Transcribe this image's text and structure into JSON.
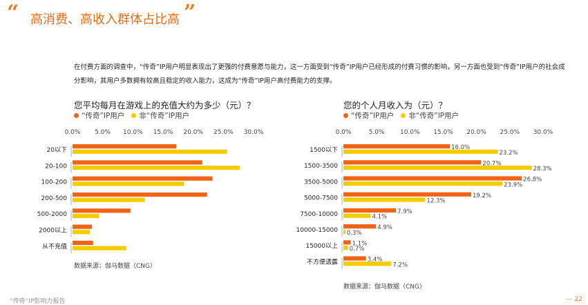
{
  "header": {
    "open_quote": "“",
    "close_quote": "”",
    "title": "高消费、高收入群体占比高"
  },
  "intro_text": "在付费方面的调查中，“传奇”IP用户明显表现出了更强的付费意愿与能力，这一方面受到“传奇”IP用户已经形成的付费习惯的影响，另一方面也受到“传奇”IP用户的社会成分影响，其用户多数拥有较高且稳定的收入能力，这成为“传奇”IP用户高付费能力的支撑。",
  "colors": {
    "legend": "#f06418",
    "non_legend": "#f5cc00",
    "accent": "#f07a1c"
  },
  "left_chart": {
    "question": "您平均每月在游戏上的充值大约为多少（元）？",
    "legend_a": "“传奇”IP用户",
    "legend_b": "非“传奇”IP用户",
    "source": "数据来源：伽马数据（CNG）"
  },
  "right_chart": {
    "question": "您的个人月收入为（元）？",
    "legend_a": "“传奇”IP用户",
    "legend_b": "非“传奇”IP用户",
    "source": "数据来源：伽马数据（CNG）"
  },
  "footer": {
    "left": "“传奇”IP影响力报告",
    "page": "— 22"
  },
  "chart_data": [
    {
      "type": "bar",
      "orientation": "horizontal",
      "title": "您平均每月在游戏上的充值大约为多少（元）？",
      "categories": [
        "20以下",
        "20-100",
        "100-200",
        "200-500",
        "500-2000",
        "2000以上",
        "从不充值"
      ],
      "series": [
        {
          "name": "“传奇”IP用户",
          "values": [
            17.2,
            21.5,
            23.2,
            22.3,
            9.6,
            3.2,
            3.4
          ]
        },
        {
          "name": "非“传奇”IP用户",
          "values": [
            25.6,
            27.7,
            18.5,
            12.0,
            4.4,
            2.9,
            8.9
          ]
        }
      ],
      "xlim": [
        0,
        30
      ],
      "xticks": [
        "0.0%",
        "5.0%",
        "10.0%",
        "15.0%",
        "20.0%",
        "25.0%",
        "30.0%"
      ],
      "show_labels": false
    },
    {
      "type": "bar",
      "orientation": "horizontal",
      "title": "您的个人月收入为（元）？",
      "categories": [
        "1500以下",
        "1500-3500",
        "3500-5000",
        "5000-7500",
        "7500-10000",
        "10000-15000",
        "15000以上",
        "不方便透露"
      ],
      "series": [
        {
          "name": "“传奇”IP用户",
          "values": [
            16.0,
            20.7,
            26.8,
            19.2,
            7.9,
            4.9,
            1.1,
            3.4
          ]
        },
        {
          "name": "非“传奇”IP用户",
          "values": [
            23.2,
            28.3,
            23.9,
            12.3,
            4.1,
            0.3,
            0.7,
            7.2
          ]
        }
      ],
      "value_labels": [
        [
          "16.0%",
          "20.7%",
          "26.8%",
          "19.2%",
          "7.9%",
          "4.9%",
          "1.1%",
          "3.4%"
        ],
        [
          "23.2%",
          "28.3%",
          "23.9%",
          "12.3%",
          "4.1%",
          "0.3%",
          "0.7%",
          "7.2%"
        ]
      ],
      "xlim": [
        0,
        30
      ],
      "xticks": [
        "0.0%",
        "5.0%",
        "10.0%",
        "15.0%",
        "20.0%",
        "25.0%",
        "30.0%"
      ],
      "show_labels": true
    }
  ]
}
